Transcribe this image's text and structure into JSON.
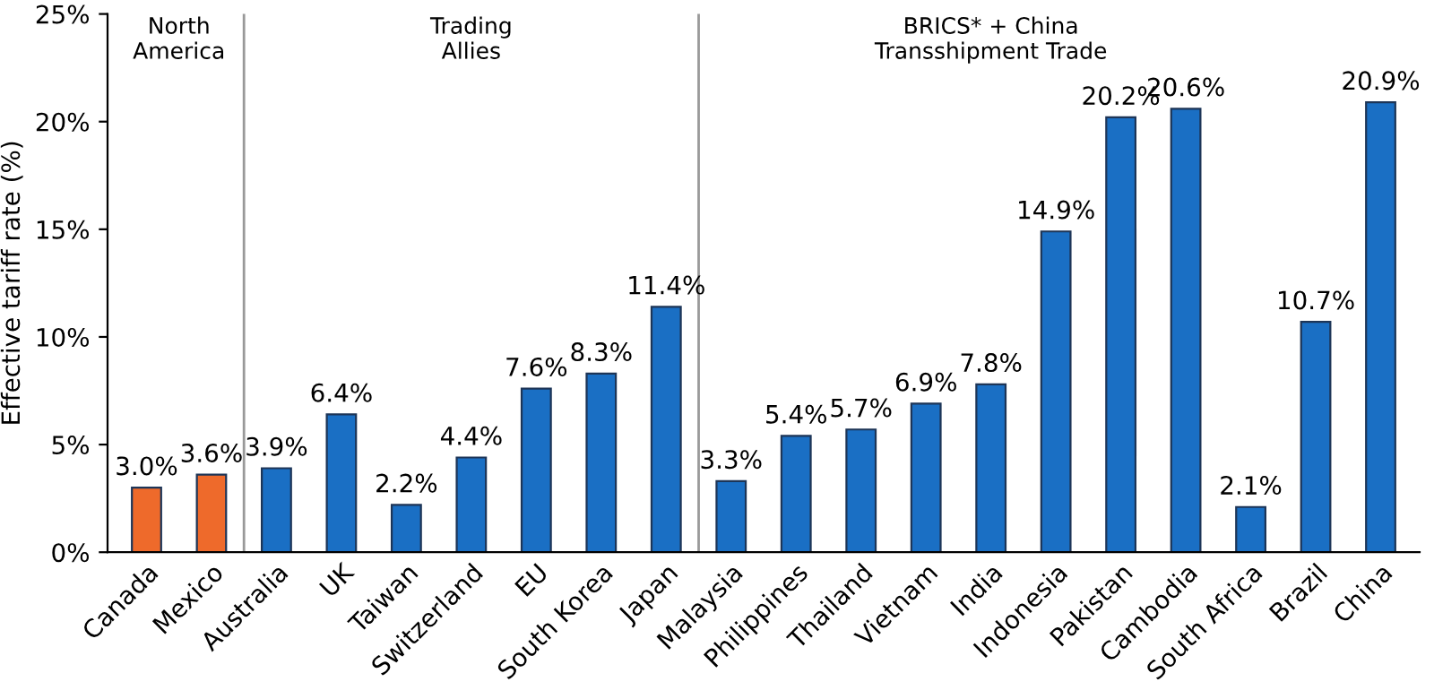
{
  "chart_data": {
    "type": "bar",
    "ylabel": "Effective tariff rate (%)",
    "categories": [
      "Canada",
      "Mexico",
      "Australia",
      "UK",
      "Taiwan",
      "Switzerland",
      "EU",
      "South Korea",
      "Japan",
      "Malaysia",
      "Philippines",
      "Thailand",
      "Vietnam",
      "India",
      "Indonesia",
      "Pakistan",
      "Cambodia",
      "South Africa",
      "Brazil",
      "China"
    ],
    "values": [
      3.0,
      3.6,
      3.9,
      6.4,
      2.2,
      4.4,
      7.6,
      8.3,
      11.4,
      3.3,
      5.4,
      5.7,
      6.9,
      7.8,
      14.9,
      20.2,
      20.6,
      2.1,
      10.7,
      20.9
    ],
    "colors": [
      "#ee6a2b",
      "#ee6a2b",
      "#1a6fc4",
      "#1a6fc4",
      "#1a6fc4",
      "#1a6fc4",
      "#1a6fc4",
      "#1a6fc4",
      "#1a6fc4",
      "#1a6fc4",
      "#1a6fc4",
      "#1a6fc4",
      "#1a6fc4",
      "#1a6fc4",
      "#1a6fc4",
      "#1a6fc4",
      "#1a6fc4",
      "#1a6fc4",
      "#1a6fc4",
      "#1a6fc4"
    ],
    "value_labels": [
      "3.0%",
      "3.6%",
      "3.9%",
      "6.4%",
      "2.2%",
      "4.4%",
      "7.6%",
      "8.3%",
      "11.4%",
      "3.3%",
      "5.4%",
      "5.7%",
      "6.9%",
      "7.8%",
      "14.9%",
      "20.2%",
      "20.6%",
      "2.1%",
      "10.7%",
      "20.9%"
    ],
    "ylim": [
      0,
      25
    ],
    "yticks": [
      {
        "value": 0,
        "label": "0%"
      },
      {
        "value": 5,
        "label": "5%"
      },
      {
        "value": 10,
        "label": "10%"
      },
      {
        "value": 15,
        "label": "15%"
      },
      {
        "value": 20,
        "label": "20%"
      },
      {
        "value": 25,
        "label": "25%"
      }
    ],
    "annotations": [
      "North\nAmerica",
      "Trading\nAllies",
      "BRICS* + China\nTransshipment Trade"
    ],
    "grid": false,
    "legend": false
  }
}
